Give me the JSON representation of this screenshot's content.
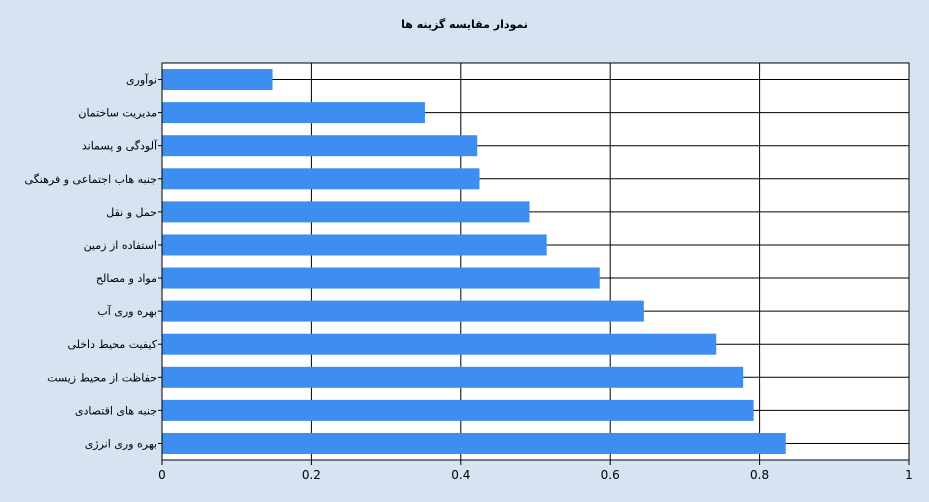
{
  "chart_data": {
    "type": "bar",
    "orientation": "horizontal",
    "title": "نمودار مقایسه گزینه ها",
    "categories": [
      "نوآوری",
      "مدیریت ساختمان",
      "آلودگی و پسماند",
      "جنبه هاب اجتماعی و فرهنگی",
      "حمل و نقل",
      "استفاده از زمین",
      "مواد و مصالح",
      "بهره وری آب",
      "کیفیت محیط داخلی",
      "حفاظت از محیط زیست",
      "جنبه های اقتصادی",
      "بهره وری انرژی"
    ],
    "values": [
      0.148,
      0.352,
      0.422,
      0.425,
      0.492,
      0.515,
      0.586,
      0.645,
      0.742,
      0.778,
      0.792,
      0.835
    ],
    "xlim": [
      0,
      1
    ],
    "x_ticks": [
      "0",
      "0.2",
      "0.4",
      "0.6",
      "0.8",
      "1"
    ],
    "grid": true,
    "bar_color": "#3d8ef0",
    "background_color": "#d6e3f1"
  }
}
